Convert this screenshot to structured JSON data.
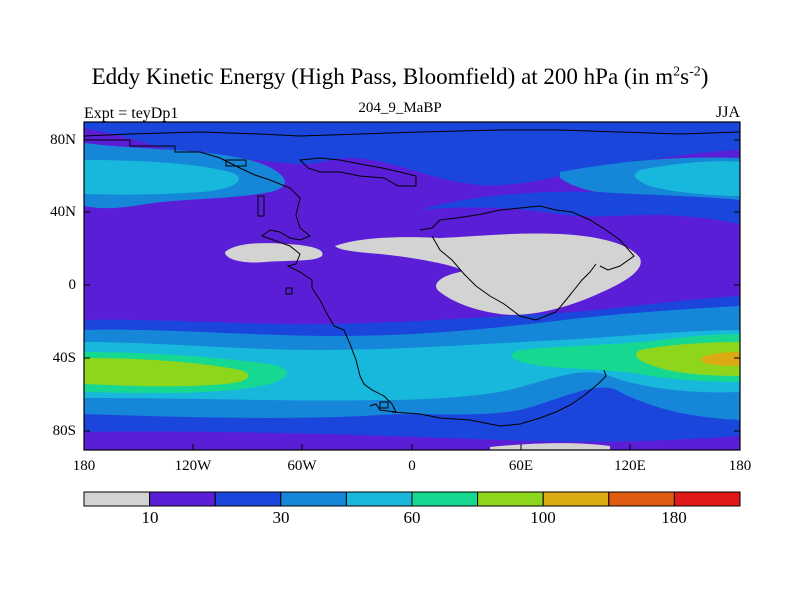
{
  "title_main": "Eddy Kinetic Energy (High Pass, Bloomfield) at 200 hPa (in m",
  "title_sup1": "2",
  "title_mid": "s",
  "title_sup2": "-2",
  "title_end": ")",
  "subtitle": "204_9_MaBP",
  "left_label": "Expt = teyDp1",
  "right_label": "JJA",
  "lat_ticks": [
    "80N",
    "40N",
    "0",
    "40S",
    "80S"
  ],
  "lon_ticks": [
    "180",
    "120W",
    "60W",
    "0",
    "60E",
    "120E",
    "180"
  ],
  "colorbar": {
    "colors": [
      "#d3d3d3",
      "#5a1ed7",
      "#1a46dc",
      "#1686d8",
      "#18b8dc",
      "#16d890",
      "#8ed61c",
      "#dcaa12",
      "#e05a10",
      "#e01818"
    ],
    "labels": [
      "10",
      "30",
      "60",
      "100",
      "180"
    ]
  },
  "colors": {
    "lowest": "#d3d3d3",
    "level_1": "#5a1ed7",
    "level_2": "#1a46dc",
    "level_3": "#1686d8",
    "level_4": "#18b8dc",
    "level_5": "#16d890",
    "level_6": "#8ed61c",
    "level_7": "#dcaa12"
  }
}
